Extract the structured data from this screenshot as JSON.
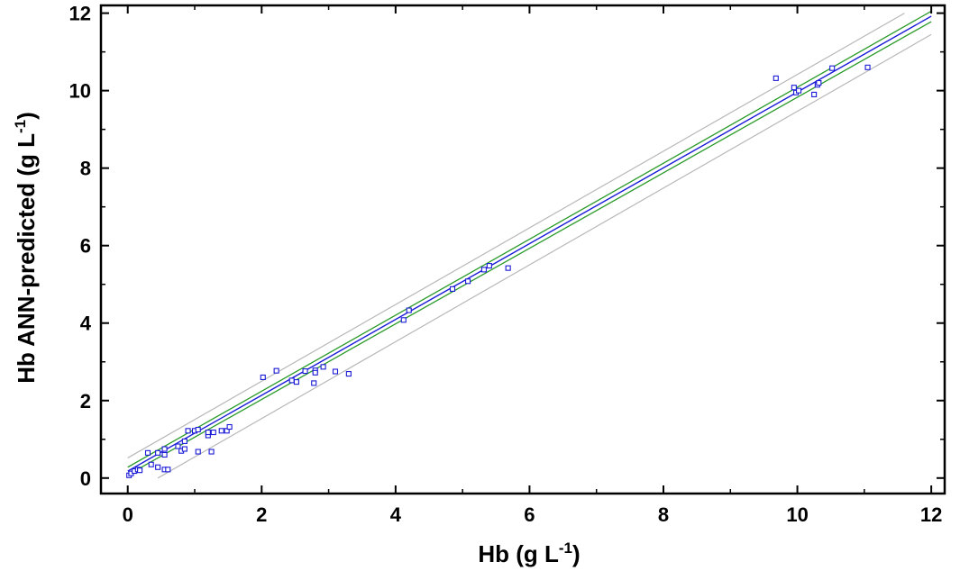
{
  "chart_data": {
    "type": "scatter",
    "xlabel": {
      "main": "Hb (g L",
      "sup": "-1",
      "close": ")"
    },
    "ylabel": {
      "main": "Hb ANN-predicted (g L",
      "sup": "-1",
      "close": ")"
    },
    "xlim": [
      -0.4,
      12.2
    ],
    "ylim": [
      -0.4,
      12.2
    ],
    "xticks": [
      0,
      2,
      4,
      6,
      8,
      10,
      12
    ],
    "yticks": [
      0,
      2,
      4,
      6,
      8,
      10,
      12
    ],
    "grid": false,
    "colors": {
      "points": "#1a1ad6",
      "regression": "#1a1ad6",
      "confidence": "#2a9a2a",
      "prediction": "#b8b8b8"
    },
    "points": [
      {
        "x": 0.02,
        "y": 0.07
      },
      {
        "x": 0.05,
        "y": 0.12
      },
      {
        "x": 0.1,
        "y": 0.18
      },
      {
        "x": 0.15,
        "y": 0.22
      },
      {
        "x": 0.18,
        "y": 0.2
      },
      {
        "x": 0.3,
        "y": 0.65
      },
      {
        "x": 0.35,
        "y": 0.35
      },
      {
        "x": 0.45,
        "y": 0.65
      },
      {
        "x": 0.45,
        "y": 0.28
      },
      {
        "x": 0.55,
        "y": 0.6
      },
      {
        "x": 0.55,
        "y": 0.75
      },
      {
        "x": 0.55,
        "y": 0.22
      },
      {
        "x": 0.6,
        "y": 0.22
      },
      {
        "x": 0.75,
        "y": 0.82
      },
      {
        "x": 0.8,
        "y": 0.7
      },
      {
        "x": 0.85,
        "y": 0.95
      },
      {
        "x": 0.85,
        "y": 0.75
      },
      {
        "x": 0.9,
        "y": 1.22
      },
      {
        "x": 1.0,
        "y": 1.22
      },
      {
        "x": 1.05,
        "y": 0.68
      },
      {
        "x": 1.05,
        "y": 1.25
      },
      {
        "x": 1.2,
        "y": 1.1
      },
      {
        "x": 1.2,
        "y": 1.18
      },
      {
        "x": 1.25,
        "y": 0.68
      },
      {
        "x": 1.28,
        "y": 1.18
      },
      {
        "x": 1.4,
        "y": 1.22
      },
      {
        "x": 1.48,
        "y": 1.22
      },
      {
        "x": 1.52,
        "y": 1.32
      },
      {
        "x": 2.02,
        "y": 2.6
      },
      {
        "x": 2.22,
        "y": 2.77
      },
      {
        "x": 2.45,
        "y": 2.52
      },
      {
        "x": 2.52,
        "y": 2.48
      },
      {
        "x": 2.65,
        "y": 2.76
      },
      {
        "x": 2.78,
        "y": 2.45
      },
      {
        "x": 2.8,
        "y": 2.78
      },
      {
        "x": 2.8,
        "y": 2.72
      },
      {
        "x": 2.92,
        "y": 2.87
      },
      {
        "x": 3.1,
        "y": 2.75
      },
      {
        "x": 3.3,
        "y": 2.69
      },
      {
        "x": 4.12,
        "y": 4.08
      },
      {
        "x": 4.2,
        "y": 4.33
      },
      {
        "x": 4.85,
        "y": 4.88
      },
      {
        "x": 5.08,
        "y": 5.08
      },
      {
        "x": 5.32,
        "y": 5.38
      },
      {
        "x": 5.4,
        "y": 5.48
      },
      {
        "x": 5.68,
        "y": 5.42
      },
      {
        "x": 9.68,
        "y": 10.32
      },
      {
        "x": 9.95,
        "y": 10.08
      },
      {
        "x": 9.98,
        "y": 9.95
      },
      {
        "x": 10.02,
        "y": 10.0
      },
      {
        "x": 10.25,
        "y": 9.9
      },
      {
        "x": 10.3,
        "y": 10.15
      },
      {
        "x": 10.32,
        "y": 10.2
      },
      {
        "x": 10.52,
        "y": 10.58
      },
      {
        "x": 11.05,
        "y": 10.6
      }
    ],
    "regression_line": {
      "x": [
        0.0,
        12.0
      ],
      "y": [
        0.18,
        11.92
      ]
    },
    "confidence_band": {
      "upper": {
        "x": [
          0.0,
          12.0
        ],
        "y": [
          0.28,
          12.05
        ]
      },
      "lower": {
        "x": [
          0.0,
          12.0
        ],
        "y": [
          0.08,
          11.78
        ]
      }
    },
    "prediction_band": {
      "upper": {
        "x": [
          0.0,
          11.6
        ],
        "y": [
          0.52,
          12.0
        ]
      },
      "lower": {
        "x": [
          0.45,
          12.0
        ],
        "y": [
          0.0,
          11.45
        ]
      }
    }
  }
}
